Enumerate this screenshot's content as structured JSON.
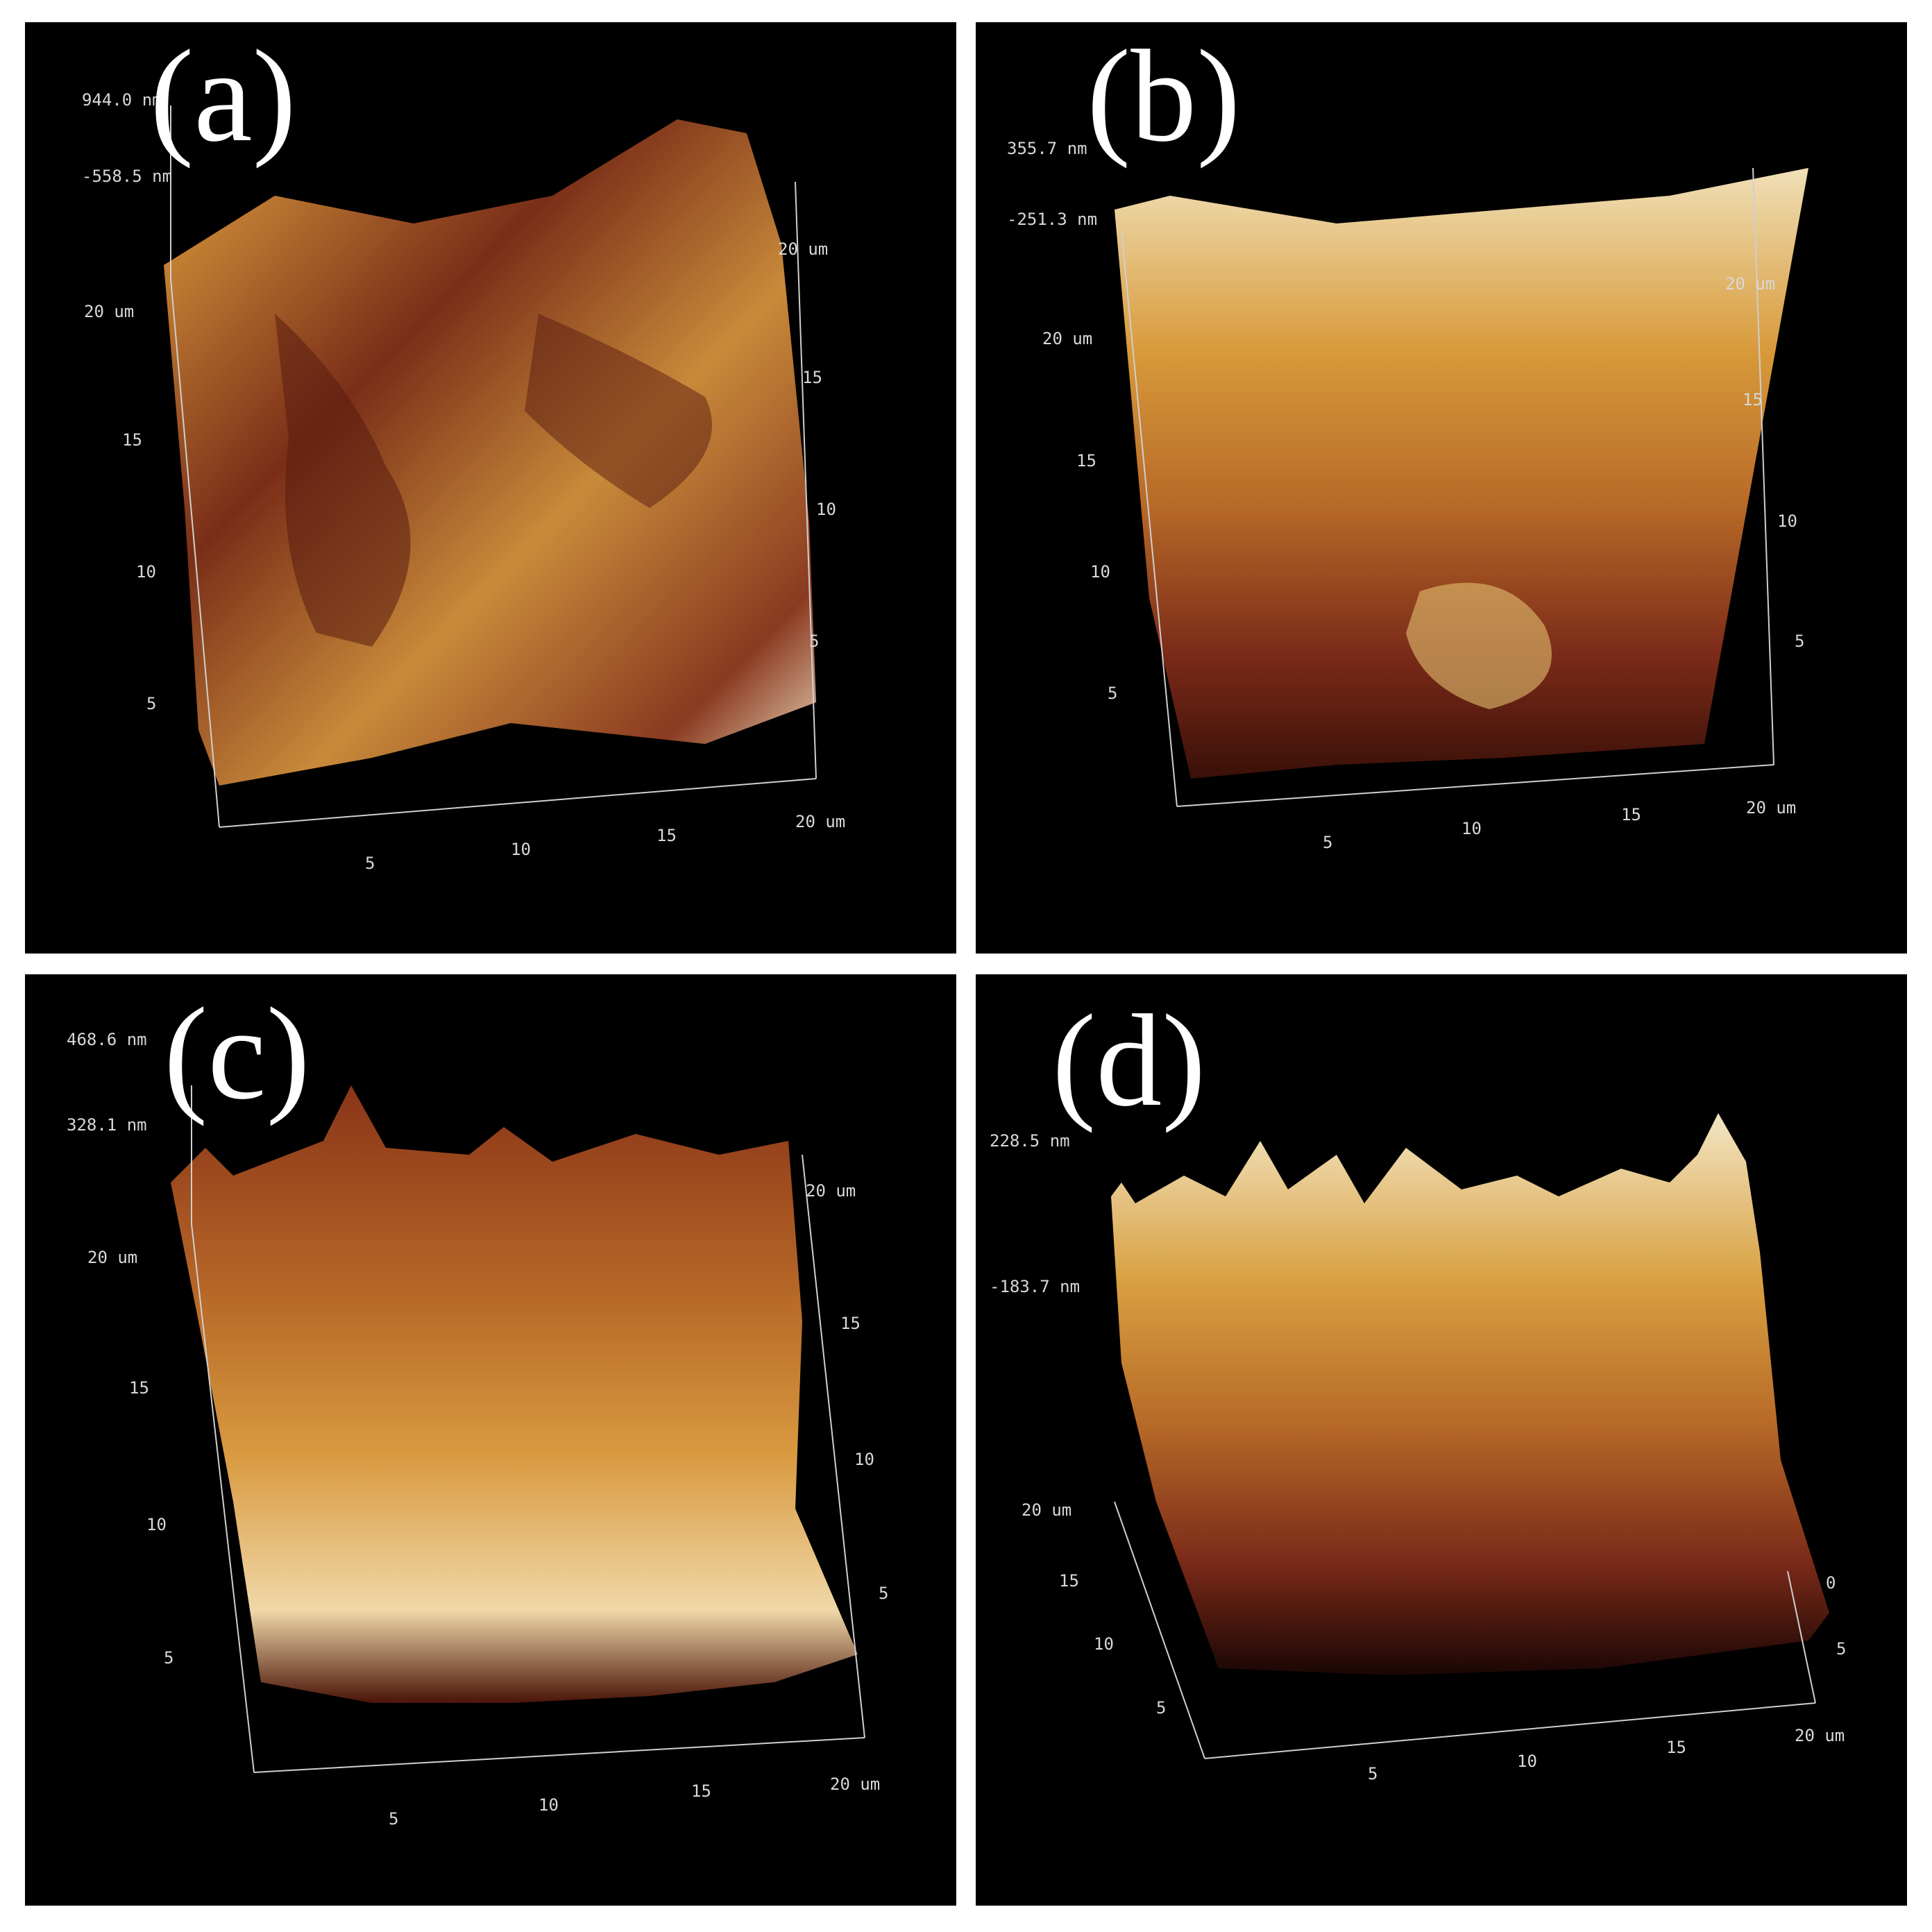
{
  "panels": [
    {
      "label": "(a)",
      "z_max": "944.0 nm",
      "z_min": "-558.5 nm",
      "x_ticks": [
        "5",
        "10",
        "15",
        "20 um"
      ],
      "y_ticks": [
        "5",
        "10",
        "15",
        "20 um"
      ],
      "r_ticks": [
        "5",
        "10",
        "15",
        "20 um"
      ]
    },
    {
      "label": "(b)",
      "z_max": "355.7 nm",
      "z_min": "-251.3 nm",
      "x_ticks": [
        "5",
        "10",
        "15",
        "20 um"
      ],
      "y_ticks": [
        "5",
        "10",
        "15",
        "20 um"
      ],
      "r_ticks": [
        "5",
        "10",
        "15",
        "20 um"
      ]
    },
    {
      "label": "(c)",
      "z_max": "468.6 nm",
      "z_min": "328.1 nm",
      "x_ticks": [
        "5",
        "10",
        "15",
        "20 um"
      ],
      "y_ticks": [
        "5",
        "10",
        "15",
        "20 um"
      ],
      "r_ticks": [
        "5",
        "10",
        "15",
        "20 um"
      ]
    },
    {
      "label": "(d)",
      "z_max": "228.5 nm",
      "z_min": "-183.7 nm",
      "x_ticks": [
        "5",
        "10",
        "15",
        "20 um"
      ],
      "y_ticks": [
        "5",
        "10",
        "15",
        "20 um"
      ],
      "r_ticks": [
        "5",
        "0"
      ]
    }
  ]
}
